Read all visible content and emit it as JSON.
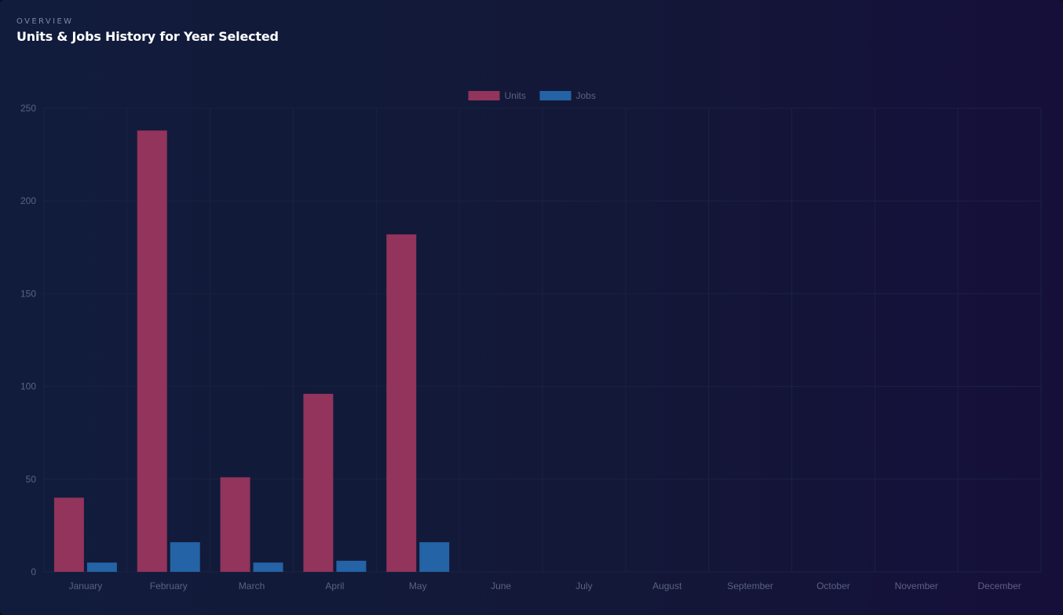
{
  "header": {
    "eyebrow": "OVERVIEW",
    "title": "Units & Jobs History for Year Selected"
  },
  "colors": {
    "units": "#92345b",
    "jobs": "#2463a5",
    "grid": "#1a2242",
    "tick_text": "#5a6280"
  },
  "chart_data": {
    "type": "bar",
    "title": "Units & Jobs History for Year Selected",
    "xlabel": "",
    "ylabel": "",
    "ylim": [
      0,
      250
    ],
    "yticks": [
      0,
      50,
      100,
      150,
      200,
      250
    ],
    "grid": true,
    "legend_position": "top-center",
    "categories": [
      "January",
      "February",
      "March",
      "April",
      "May",
      "June",
      "July",
      "August",
      "September",
      "October",
      "November",
      "December"
    ],
    "series": [
      {
        "name": "Units",
        "color": "#92345b",
        "values": [
          40,
          238,
          51,
          96,
          182,
          0,
          0,
          0,
          0,
          0,
          0,
          0
        ]
      },
      {
        "name": "Jobs",
        "color": "#2463a5",
        "values": [
          5,
          16,
          5,
          6,
          16,
          0,
          0,
          0,
          0,
          0,
          0,
          0
        ]
      }
    ]
  }
}
